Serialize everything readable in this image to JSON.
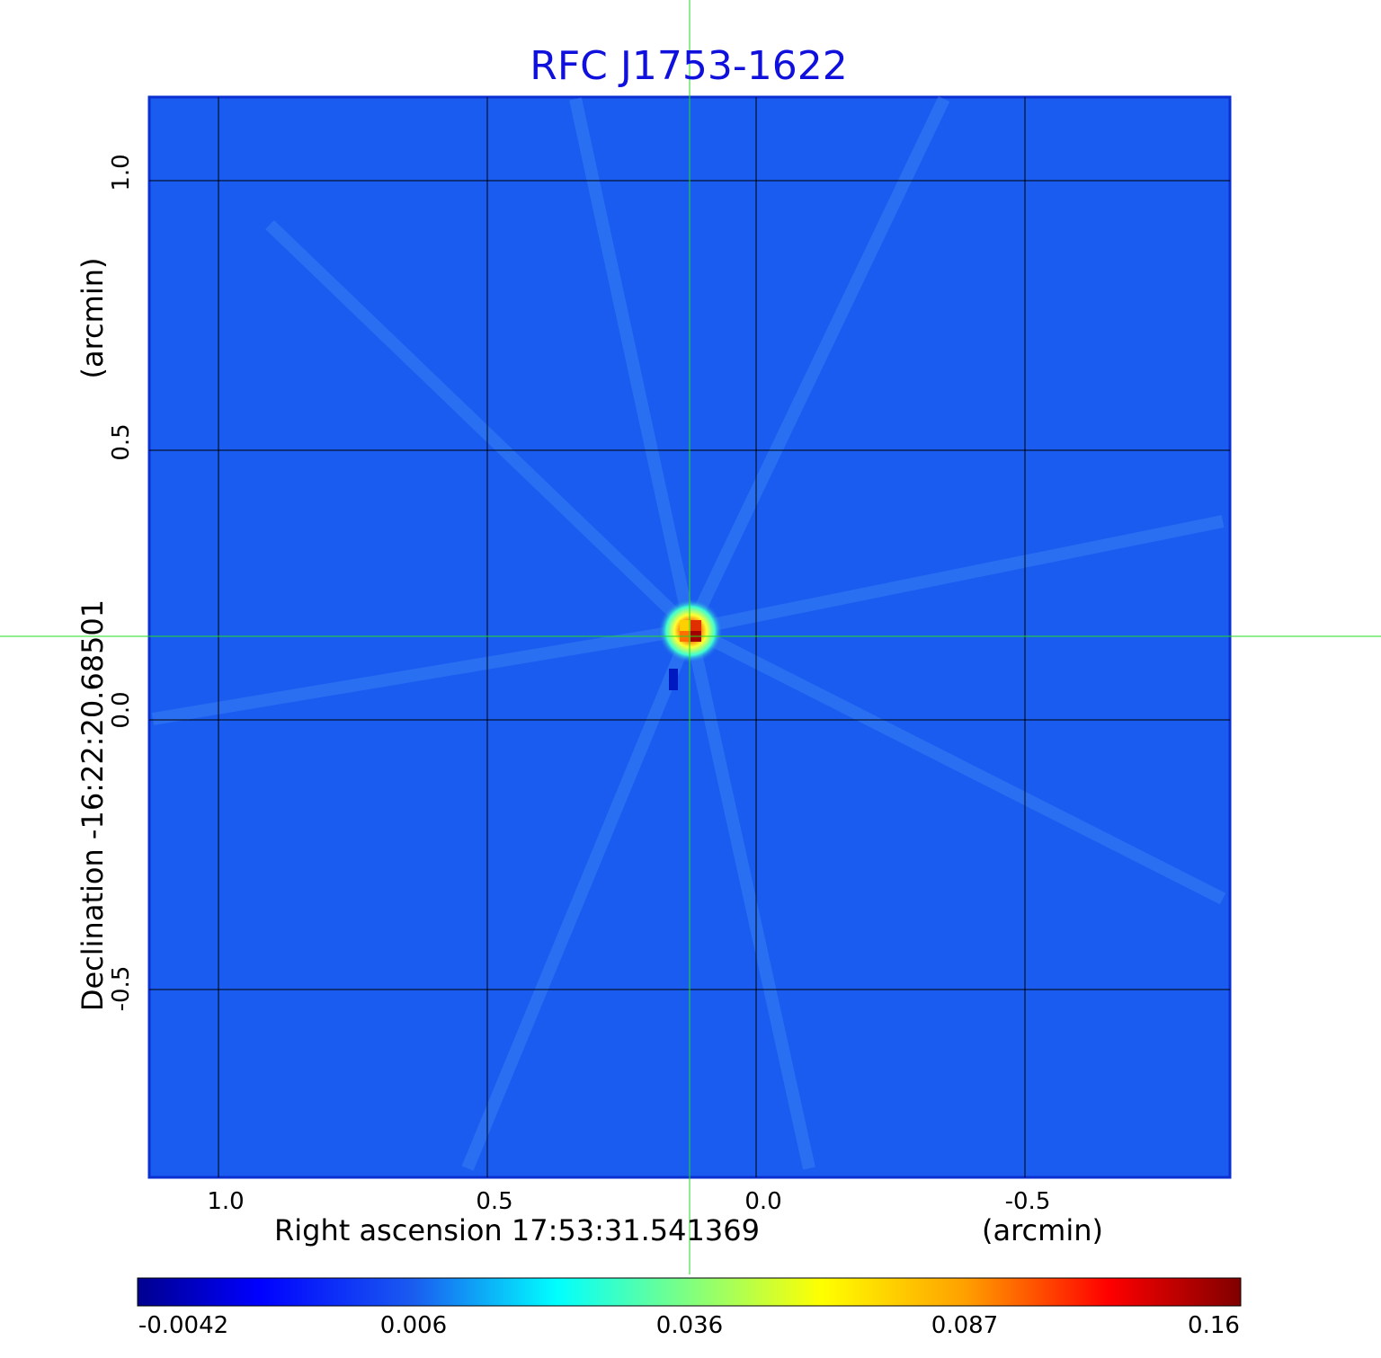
{
  "title": "RFC J1753-1622",
  "x_axis": {
    "label": "Right ascension  17:53:31.541369",
    "unit": "(arcmin)",
    "ticks": [
      "1.0",
      "0.5",
      "0.0",
      "-0.5"
    ]
  },
  "y_axis": {
    "label": "Declination  -16:22:20.68501",
    "unit": "(arcmin)",
    "ticks": [
      "1.0",
      "0.5",
      "0.0",
      "-0.5"
    ]
  },
  "colorbar": {
    "ticks": [
      "-0.0042",
      "0.006",
      "0.036",
      "0.087",
      "0.16"
    ],
    "colormap": "jet"
  },
  "colors": {
    "background_map": "#1a5cf0",
    "grid": "#000000",
    "crosshair": "#22dd22",
    "title": "#1010dd"
  },
  "source": {
    "peak_value": 0.16,
    "offset_arcmin": [
      0.12,
      0.16
    ]
  }
}
